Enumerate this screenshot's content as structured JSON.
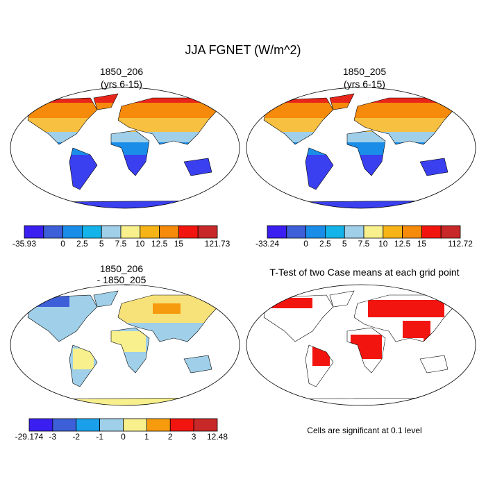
{
  "title": "JJA FGNET (W/m^2)",
  "panels": [
    {
      "title": [
        "1850_206",
        "(yrs 6-15)"
      ],
      "colorbar": {
        "labels": [
          "-35.93",
          "0",
          "2.5",
          "5",
          "7.5",
          "10",
          "12.5",
          "15",
          "121.73"
        ],
        "colors": [
          "#3a1ff0",
          "#3d5fd8",
          "#1a8de8",
          "#14b4ea",
          "#9fcfe9",
          "#f7f08c",
          "#f7b416",
          "#f58a0b",
          "#f2150f",
          "#c82828"
        ]
      }
    },
    {
      "title": [
        "1850_205",
        "(yrs 6-15)"
      ],
      "colorbar": {
        "labels": [
          "-33.24",
          "0",
          "2.5",
          "5",
          "7.5",
          "10",
          "12.5",
          "15",
          "112.72"
        ],
        "colors": [
          "#3a1ff0",
          "#3d5fd8",
          "#1a8de8",
          "#14b4ea",
          "#9fcfe9",
          "#f7f08c",
          "#f7b416",
          "#f58a0b",
          "#f2150f",
          "#c82828"
        ]
      }
    },
    {
      "title": [
        "1850_206",
        "- 1850_205"
      ],
      "colorbar": {
        "labels": [
          "-29.174",
          "-3",
          "-2",
          "-1",
          "0",
          "1",
          "2",
          "3",
          "12.48"
        ],
        "colors": [
          "#3a1ff0",
          "#3d5fd8",
          "#1aa0ea",
          "#9fcfe9",
          "#f7f08c",
          "#f79b0e",
          "#f2150f",
          "#c82828"
        ]
      }
    },
    {
      "title": [
        "T-Test of two Case means at each grid point"
      ],
      "note": "Cells are significant at 0.1 level"
    }
  ]
}
